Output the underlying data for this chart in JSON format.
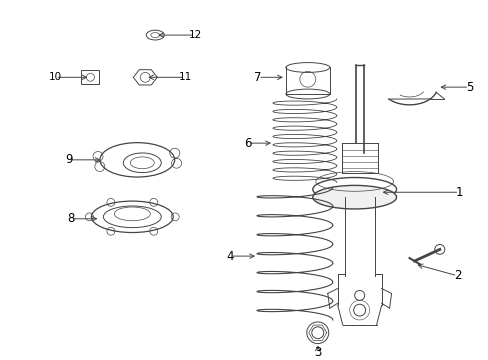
{
  "bg_color": "#ffffff",
  "line_color": "#444444",
  "fig_width": 4.89,
  "fig_height": 3.6,
  "dpi": 100,
  "label_fontsize": 8.5,
  "label_fontsize_small": 7.5,
  "lw": 0.7
}
